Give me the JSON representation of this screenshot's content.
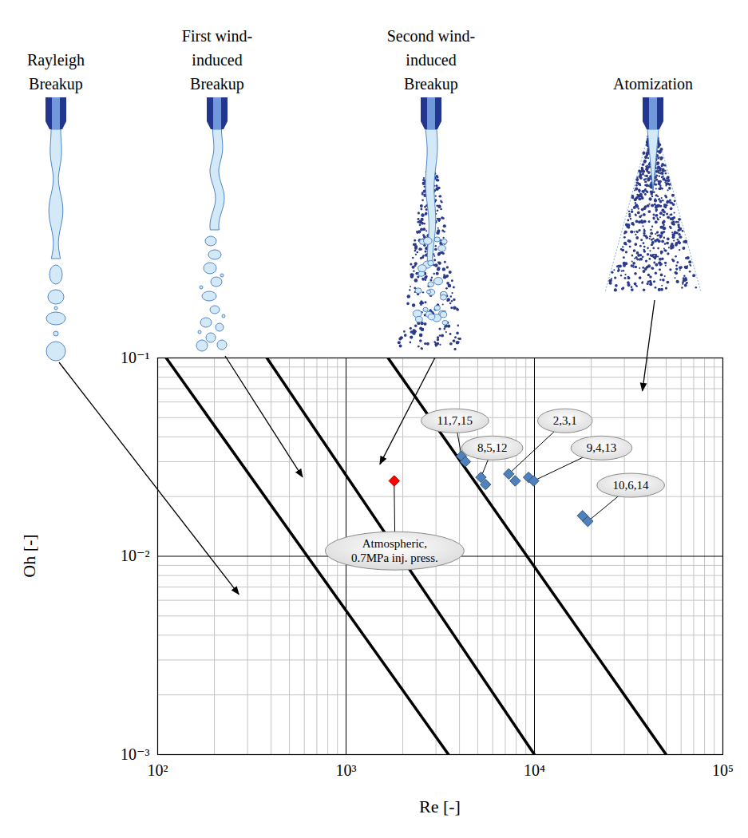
{
  "chart_data": {
    "type": "scatter",
    "log": true,
    "grid": true,
    "x_label": "Re [-]",
    "y_label": "Oh [-]",
    "xlim": [
      100,
      100000
    ],
    "ylim": [
      0.001,
      0.1
    ],
    "xticks": [
      {
        "value": 100,
        "label": "10²"
      },
      {
        "value": 1000,
        "label": "10³"
      },
      {
        "value": 10000,
        "label": "10⁴"
      },
      {
        "value": 100000,
        "label": "10⁵"
      }
    ],
    "yticks": [
      {
        "value": 0.001,
        "label": "10⁻³"
      },
      {
        "value": 0.01,
        "label": "10⁻²"
      },
      {
        "value": 0.1,
        "label": "10⁻¹"
      }
    ],
    "regimes": [
      {
        "name": "Rayleigh Breakup",
        "arrow_to": {
          "x": 271,
          "y": 0.0064
        }
      },
      {
        "name": "First wind-induced Breakup",
        "arrow_to": {
          "x": 590,
          "y": 0.025
        }
      },
      {
        "name": "Second wind-induced Breakup",
        "arrow_to": {
          "x": 1520,
          "y": 0.029
        }
      },
      {
        "name": "Atomization",
        "arrow_to": {
          "x": 37600,
          "y": 0.068
        }
      }
    ],
    "boundaries": [
      {
        "x": [
          111,
          3500
        ],
        "y": [
          0.1,
          0.001
        ]
      },
      {
        "x": [
          380,
          10000
        ],
        "y": [
          0.1,
          0.001
        ]
      },
      {
        "x": [
          1670,
          50000
        ],
        "y": [
          0.1,
          0.001
        ]
      }
    ],
    "series": [
      {
        "label": "11,7,15",
        "label_at": {
          "x": 3800,
          "y": 0.048
        },
        "color": "#4f81bd",
        "marker": "diamond",
        "x": [
          4100,
          4300
        ],
        "y": [
          0.032,
          0.03
        ]
      },
      {
        "label": "8,5,12",
        "label_at": {
          "x": 6000,
          "y": 0.035
        },
        "color": "#4f81bd",
        "marker": "diamond",
        "x": [
          5200,
          5500
        ],
        "y": [
          0.025,
          0.023
        ]
      },
      {
        "label": "2,3,1",
        "label_at": {
          "x": 14600,
          "y": 0.048
        },
        "color": "#4f81bd",
        "marker": "diamond",
        "x": [
          7300,
          7900
        ],
        "y": [
          0.026,
          0.024
        ]
      },
      {
        "label": "9,4,13",
        "label_at": {
          "x": 22800,
          "y": 0.035
        },
        "color": "#4f81bd",
        "marker": "diamond",
        "x": [
          9300,
          9900
        ],
        "y": [
          0.025,
          0.024
        ]
      },
      {
        "label": "10,6,14",
        "label_at": {
          "x": 32600,
          "y": 0.0227
        },
        "color": "#4f81bd",
        "marker": "diamond",
        "x": [
          18000,
          19200
        ],
        "y": [
          0.016,
          0.015
        ]
      },
      {
        "label": "Atmospheric, 0.7MPa inj. press.",
        "label_at": {
          "x": 1820,
          "y": 0.0106
        },
        "color": "#ff0000",
        "marker": "diamond",
        "x": [
          1800
        ],
        "y": [
          0.024
        ]
      }
    ]
  }
}
